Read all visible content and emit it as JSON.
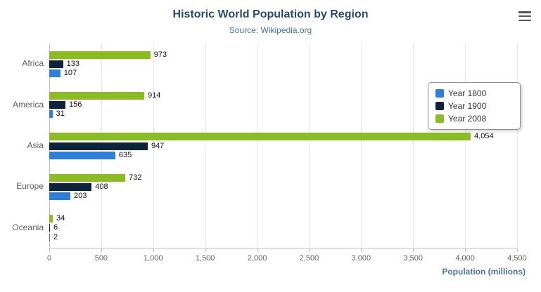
{
  "header": {
    "title": "Historic World Population by Region",
    "subtitle": "Source: Wikipedia.org",
    "menu_icon": "hamburger-icon"
  },
  "chart_data": {
    "type": "bar",
    "orientation": "horizontal",
    "title": "Historic World Population by Region",
    "subtitle": "Source: Wikipedia.org",
    "xlabel": "Population (millions)",
    "categories": [
      "Africa",
      "America",
      "Asia",
      "Europe",
      "Oceania"
    ],
    "series": [
      {
        "name": "Year 1800",
        "color": "#2f7ed8",
        "values": [
          107,
          31,
          635,
          203,
          2
        ]
      },
      {
        "name": "Year 1900",
        "color": "#0d233a",
        "values": [
          133,
          156,
          947,
          408,
          6
        ]
      },
      {
        "name": "Year 2008",
        "color": "#8bbc21",
        "values": [
          973,
          914,
          4054,
          732,
          34
        ]
      }
    ],
    "bar_display_order_top_to_bottom": [
      "Year 2008",
      "Year 1900",
      "Year 1800"
    ],
    "xlim": [
      0,
      4500
    ],
    "xticks": [
      0,
      500,
      1000,
      1500,
      2000,
      2500,
      3000,
      3500,
      4000,
      4500
    ],
    "grid": true,
    "legend_position": "right"
  }
}
